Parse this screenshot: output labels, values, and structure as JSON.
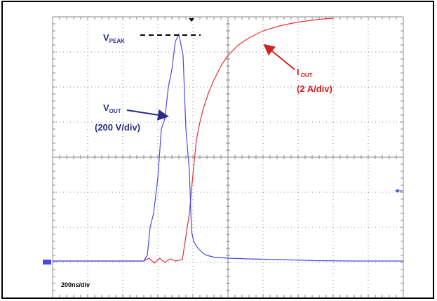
{
  "chart_data": {
    "type": "line",
    "title": "",
    "xlabel": "",
    "ylabel": "",
    "timebase_label": "200ns/div",
    "grid": true,
    "grid_divisions": {
      "x": 10,
      "y": 8
    },
    "x_unit": "div",
    "y_unit": "div",
    "xlim": [
      0,
      10
    ],
    "ylim": [
      -4,
      4
    ],
    "series": [
      {
        "name": "V_OUT",
        "color": "#4a4adc",
        "scale_label": "(200 V/div)",
        "x": [
          0,
          2.6,
          2.7,
          2.78,
          2.88,
          3.0,
          3.1,
          3.2,
          3.3,
          3.4,
          3.5,
          3.6,
          3.72,
          3.8,
          3.9,
          3.96,
          4.02,
          4.08,
          4.15,
          4.2,
          4.3,
          4.4,
          4.6,
          5.0,
          5.6,
          6.5,
          7.5,
          8.5,
          10.0
        ],
        "y": [
          -2.96,
          -2.96,
          -2.8,
          -2.0,
          -1.6,
          -0.6,
          0.8,
          1.1,
          2.0,
          2.5,
          3.3,
          3.5,
          2.9,
          0.8,
          -0.4,
          -2.1,
          -2.4,
          -2.5,
          -2.6,
          -2.65,
          -2.75,
          -2.8,
          -2.85,
          -2.88,
          -2.9,
          -2.92,
          -2.95,
          -2.96,
          -2.96
        ]
      },
      {
        "name": "I_OUT",
        "color": "#e03232",
        "scale_label": "(2 A/div)",
        "x": [
          0,
          2.6,
          2.75,
          2.9,
          3.05,
          3.2,
          3.35,
          3.5,
          3.7,
          3.9,
          4.0,
          4.1,
          4.2,
          4.3,
          4.45,
          4.6,
          4.8,
          5.0,
          5.3,
          5.6,
          6.0,
          6.5,
          7.0,
          7.6,
          8.0
        ],
        "y": [
          -2.96,
          -2.96,
          -2.88,
          -3.02,
          -2.88,
          -3.0,
          -2.9,
          -2.96,
          -2.92,
          -1.6,
          -0.5,
          0.5,
          1.0,
          1.4,
          1.85,
          2.2,
          2.6,
          2.9,
          3.2,
          3.4,
          3.6,
          3.75,
          3.85,
          3.93,
          3.96
        ]
      }
    ],
    "annotations": {
      "vpeak": {
        "main": "V",
        "sub": "PEAK"
      },
      "vout": {
        "main": "V",
        "sub": "OUT",
        "scale": "(200 V/div)"
      },
      "iout": {
        "main": "I",
        "sub": "OUT",
        "scale": "(2 A/div)"
      }
    }
  }
}
